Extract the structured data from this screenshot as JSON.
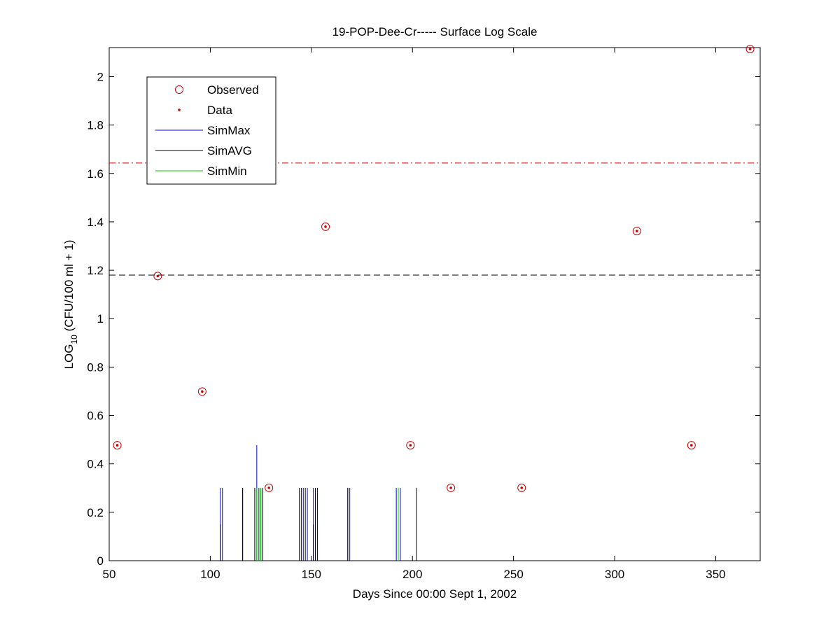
{
  "chart_data": {
    "type": "scatter",
    "title": "19-POP-Dee-Cr----- Surface Log Scale",
    "xlabel": "Days Since 00:00 Sept 1, 2002",
    "ylabel_main": "LOG",
    "ylabel_sub": "10",
    "ylabel_rest": " (CFU/100 ml + 1)",
    "xlim": [
      50,
      372
    ],
    "ylim": [
      0,
      2.12
    ],
    "x_ticks": [
      50,
      100,
      150,
      200,
      250,
      300,
      350
    ],
    "y_ticks": [
      0,
      0.2,
      0.4,
      0.6,
      0.8,
      1,
      1.2,
      1.4,
      1.6,
      1.8,
      2
    ],
    "x_tick_labels": [
      "50",
      "100",
      "150",
      "200",
      "250",
      "300",
      "350"
    ],
    "y_tick_labels": [
      "0",
      "0.2",
      "0.4",
      "0.6",
      "0.8",
      "1",
      "1.2",
      "1.4",
      "1.6",
      "1.8",
      "2"
    ],
    "grid": false,
    "legend_position": "top-left",
    "legend": [
      {
        "label": "Observed",
        "marker": "circle",
        "color": "#cc0000"
      },
      {
        "label": "Data",
        "marker": "dot",
        "color": "#cc0000"
      },
      {
        "label": "SimMax",
        "marker": "line",
        "color": "#0000cc"
      },
      {
        "label": "SimAVG",
        "marker": "line",
        "color": "#000000"
      },
      {
        "label": "SimMin",
        "marker": "line",
        "color": "#00cc00"
      }
    ],
    "reference_lines": [
      {
        "y": 1.643,
        "style": "dash-dot",
        "color": "#cc0000"
      },
      {
        "y": 1.18,
        "style": "dashed",
        "color": "#000000"
      }
    ],
    "observed": {
      "x": [
        54,
        74,
        96,
        129,
        157,
        199,
        219,
        254,
        311,
        338,
        367
      ],
      "y": [
        0.477,
        1.176,
        0.699,
        0.301,
        1.38,
        0.477,
        0.301,
        0.301,
        1.362,
        0.477,
        2.114
      ]
    },
    "sim_max": {
      "x": [
        105,
        106,
        116,
        122,
        123,
        124,
        125,
        126,
        144,
        146,
        148,
        151,
        152,
        153,
        168,
        169,
        192,
        193,
        194,
        202
      ],
      "y": [
        0.301,
        0.301,
        0.301,
        0.301,
        0.477,
        0.301,
        0.301,
        0.301,
        0.301,
        0.301,
        0.301,
        0.301,
        0.301,
        0.301,
        0.301,
        0.301,
        0.301,
        0.301,
        0.301,
        0.301
      ]
    },
    "sim_avg": {
      "x": [
        105,
        116,
        122,
        124,
        126,
        145,
        147,
        151,
        152,
        168,
        193,
        202
      ],
      "y": [
        0.15,
        0.301,
        0.301,
        0.301,
        0.301,
        0.301,
        0.301,
        0.15,
        0.301,
        0.301,
        0.301,
        0.301
      ]
    },
    "sim_min": {
      "x": [
        123,
        124,
        125,
        193
      ],
      "y": [
        0.301,
        0.301,
        0.301,
        0.301
      ]
    },
    "colors": {
      "observed": "#cc0000",
      "sim_max": "#0000cc",
      "sim_avg": "#000000",
      "sim_min": "#00cc00"
    }
  }
}
